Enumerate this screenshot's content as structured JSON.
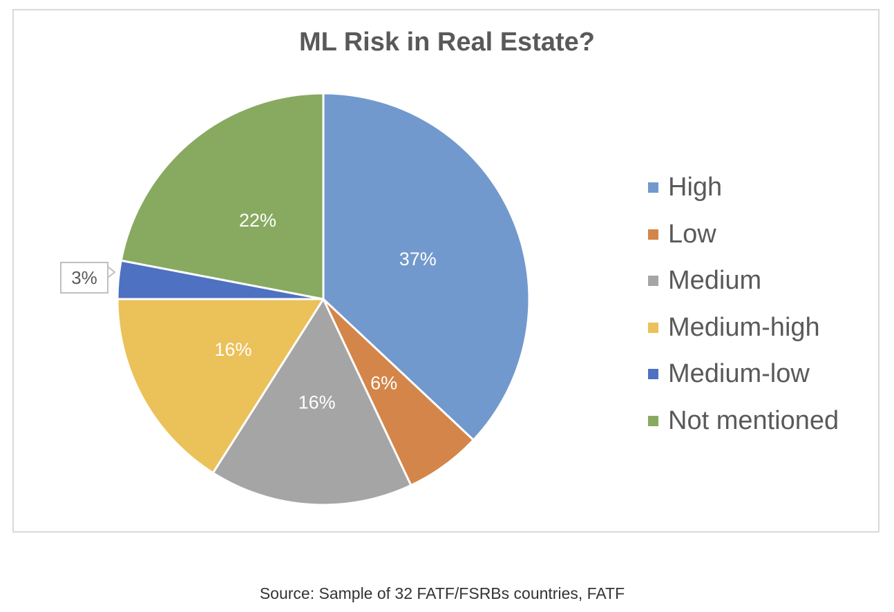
{
  "chart_data": {
    "type": "pie",
    "title": "ML Risk in Real Estate?",
    "categories": [
      "High",
      "Low",
      "Medium",
      "Medium-high",
      "Medium-low",
      "Not mentioned"
    ],
    "values": [
      37,
      6,
      16,
      16,
      3,
      22
    ],
    "value_labels": [
      "37%",
      "6%",
      "16%",
      "16%",
      "3%",
      "22%"
    ],
    "colors": [
      "#7199cd",
      "#d48549",
      "#a5a5a5",
      "#ebc15a",
      "#4f71c1",
      "#88aa60"
    ],
    "label_colors": [
      "#ffffff",
      "#ffffff",
      "#ffffff",
      "#ffffff",
      "#595959",
      "#ffffff"
    ],
    "start_angle_deg": 0,
    "direction": "clockwise",
    "legend_position": "right"
  },
  "caption": "Source: Sample of 32 FATF/FSRBs countries, FATF"
}
